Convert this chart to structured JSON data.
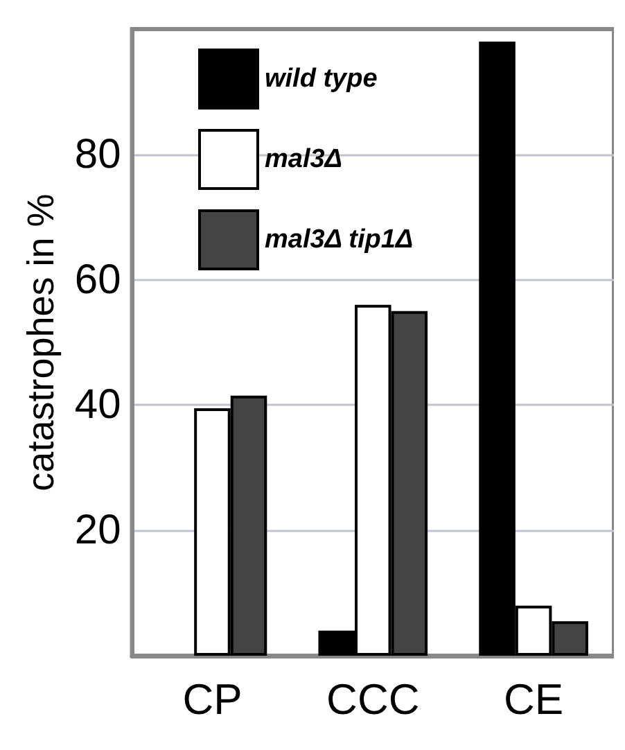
{
  "chart_data": {
    "type": "bar",
    "ylabel": "catastrophes in %",
    "categories": [
      "CP",
      "CCC",
      "CE"
    ],
    "series": [
      {
        "name": "wild type",
        "color": "#000000",
        "values": [
          null,
          4,
          98
        ]
      },
      {
        "name": "mal3Δ",
        "color": "#ffffff",
        "values": [
          39.5,
          56,
          8
        ]
      },
      {
        "name": "mal3Δ tip1Δ",
        "color": "#444444",
        "values": [
          41.5,
          55,
          5.5
        ]
      }
    ],
    "ylim": [
      0,
      100
    ],
    "yticks": [
      20,
      40,
      60,
      80
    ],
    "grid": "y",
    "legend": "top left"
  }
}
